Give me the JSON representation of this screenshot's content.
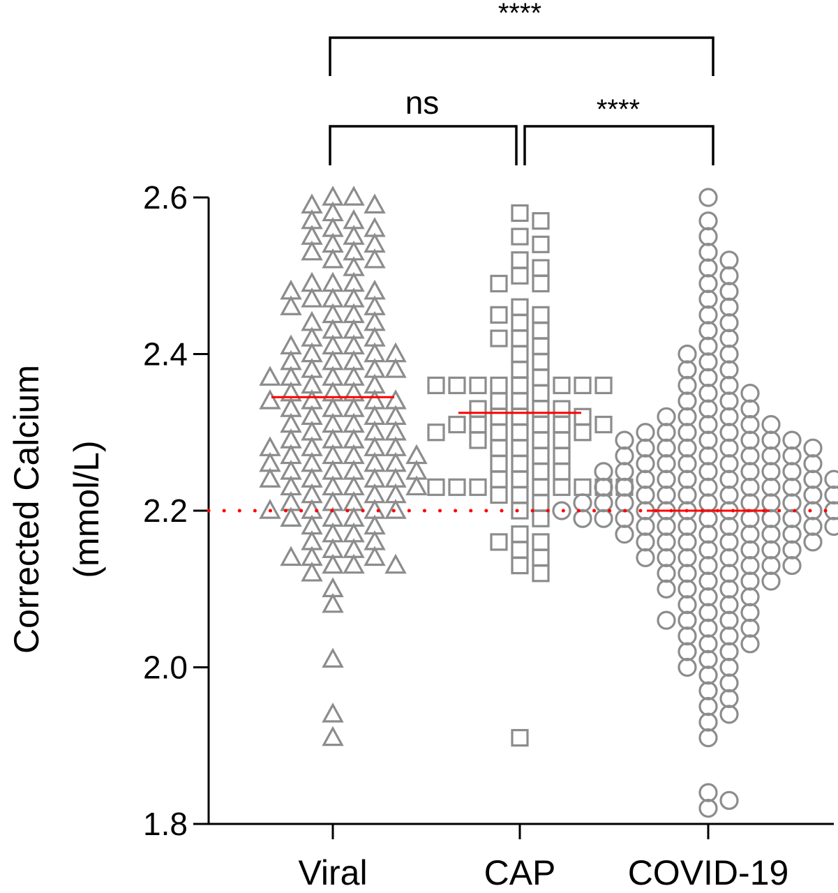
{
  "chart_data": {
    "type": "scatter",
    "title": "",
    "ylabel_lines": [
      "Corrected Calcium",
      "(mmol/L)"
    ],
    "ylim": [
      1.8,
      2.6
    ],
    "yticks": [
      "1.8",
      "2.0",
      "2.2",
      "2.4",
      "2.6"
    ],
    "categories": [
      "Viral",
      "CAP",
      "COVID-19"
    ],
    "marker_color": "#8c8c8c",
    "median_color": "#ff0000",
    "reference_line": {
      "value": 2.2,
      "style": "dotted",
      "color": "#ff0000"
    },
    "groups": [
      {
        "category": "Viral",
        "marker": "triangle",
        "median": 2.345,
        "values": [
          2.6,
          2.6,
          2.59,
          2.59,
          2.58,
          2.57,
          2.57,
          2.56,
          2.56,
          2.55,
          2.55,
          2.54,
          2.54,
          2.53,
          2.53,
          2.52,
          2.52,
          2.51,
          2.49,
          2.49,
          2.49,
          2.48,
          2.48,
          2.47,
          2.47,
          2.47,
          2.46,
          2.46,
          2.45,
          2.45,
          2.44,
          2.44,
          2.43,
          2.43,
          2.42,
          2.42,
          2.41,
          2.41,
          2.41,
          2.4,
          2.4,
          2.4,
          2.39,
          2.39,
          2.39,
          2.38,
          2.38,
          2.38,
          2.37,
          2.37,
          2.37,
          2.37,
          2.36,
          2.36,
          2.35,
          2.35,
          2.35,
          2.34,
          2.34,
          2.34,
          2.34,
          2.33,
          2.33,
          2.33,
          2.32,
          2.32,
          2.32,
          2.31,
          2.31,
          2.31,
          2.3,
          2.3,
          2.3,
          2.29,
          2.29,
          2.29,
          2.28,
          2.28,
          2.28,
          2.28,
          2.27,
          2.27,
          2.27,
          2.27,
          2.26,
          2.26,
          2.26,
          2.26,
          2.25,
          2.25,
          2.25,
          2.25,
          2.24,
          2.24,
          2.24,
          2.24,
          2.23,
          2.23,
          2.23,
          2.23,
          2.22,
          2.22,
          2.22,
          2.21,
          2.21,
          2.21,
          2.2,
          2.2,
          2.2,
          2.2,
          2.19,
          2.19,
          2.19,
          2.18,
          2.18,
          2.17,
          2.17,
          2.16,
          2.16,
          2.15,
          2.15,
          2.14,
          2.14,
          2.14,
          2.13,
          2.13,
          2.13,
          2.12,
          2.1,
          2.08,
          2.01,
          1.94,
          1.91
        ]
      },
      {
        "category": "CAP",
        "marker": "square",
        "median": 2.325,
        "values": [
          2.58,
          2.57,
          2.55,
          2.54,
          2.52,
          2.51,
          2.5,
          2.49,
          2.49,
          2.46,
          2.45,
          2.45,
          2.44,
          2.43,
          2.42,
          2.42,
          2.41,
          2.4,
          2.39,
          2.38,
          2.37,
          2.36,
          2.36,
          2.36,
          2.36,
          2.36,
          2.36,
          2.36,
          2.36,
          2.35,
          2.34,
          2.34,
          2.33,
          2.33,
          2.33,
          2.32,
          2.32,
          2.32,
          2.31,
          2.31,
          2.31,
          2.31,
          2.31,
          2.3,
          2.3,
          2.3,
          2.3,
          2.29,
          2.29,
          2.29,
          2.28,
          2.28,
          2.27,
          2.27,
          2.26,
          2.26,
          2.25,
          2.25,
          2.24,
          2.24,
          2.23,
          2.23,
          2.23,
          2.23,
          2.23,
          2.23,
          2.23,
          2.23,
          2.22,
          2.22,
          2.21,
          2.2,
          2.19,
          2.17,
          2.16,
          2.16,
          2.15,
          2.14,
          2.13,
          2.12,
          1.91
        ]
      },
      {
        "category": "COVID-19",
        "marker": "circle",
        "median": 2.2,
        "values": [
          2.6,
          2.57,
          2.55,
          2.53,
          2.52,
          2.51,
          2.5,
          2.49,
          2.48,
          2.47,
          2.46,
          2.45,
          2.44,
          2.43,
          2.42,
          2.41,
          2.4,
          2.4,
          2.39,
          2.38,
          2.38,
          2.37,
          2.36,
          2.36,
          2.35,
          2.35,
          2.34,
          2.34,
          2.33,
          2.33,
          2.32,
          2.32,
          2.32,
          2.31,
          2.31,
          2.31,
          2.3,
          2.3,
          2.3,
          2.3,
          2.29,
          2.29,
          2.29,
          2.29,
          2.29,
          2.28,
          2.28,
          2.28,
          2.28,
          2.28,
          2.27,
          2.27,
          2.27,
          2.27,
          2.27,
          2.26,
          2.26,
          2.26,
          2.26,
          2.26,
          2.25,
          2.25,
          2.25,
          2.25,
          2.25,
          2.25,
          2.24,
          2.24,
          2.24,
          2.24,
          2.24,
          2.24,
          2.23,
          2.23,
          2.23,
          2.23,
          2.23,
          2.23,
          2.22,
          2.22,
          2.22,
          2.22,
          2.22,
          2.22,
          2.21,
          2.21,
          2.21,
          2.21,
          2.21,
          2.21,
          2.21,
          2.2,
          2.2,
          2.2,
          2.2,
          2.2,
          2.2,
          2.2,
          2.2,
          2.19,
          2.19,
          2.19,
          2.19,
          2.19,
          2.19,
          2.19,
          2.18,
          2.18,
          2.18,
          2.18,
          2.18,
          2.18,
          2.17,
          2.17,
          2.17,
          2.17,
          2.17,
          2.16,
          2.16,
          2.16,
          2.16,
          2.16,
          2.15,
          2.15,
          2.15,
          2.15,
          2.14,
          2.14,
          2.14,
          2.14,
          2.13,
          2.13,
          2.13,
          2.13,
          2.12,
          2.12,
          2.12,
          2.11,
          2.11,
          2.11,
          2.1,
          2.1,
          2.1,
          2.09,
          2.09,
          2.08,
          2.08,
          2.07,
          2.07,
          2.06,
          2.06,
          2.06,
          2.05,
          2.05,
          2.04,
          2.04,
          2.03,
          2.03,
          2.02,
          2.02,
          2.01,
          2.0,
          2.0,
          1.99,
          1.98,
          1.97,
          1.96,
          1.95,
          1.94,
          1.93,
          1.91,
          1.84,
          1.83,
          1.82
        ]
      }
    ],
    "comparisons": [
      {
        "from": "Viral",
        "to": "CAP",
        "label": "ns"
      },
      {
        "from": "CAP",
        "to": "COVID-19",
        "label": "****"
      },
      {
        "from": "Viral",
        "to": "COVID-19",
        "label": "****"
      }
    ]
  }
}
